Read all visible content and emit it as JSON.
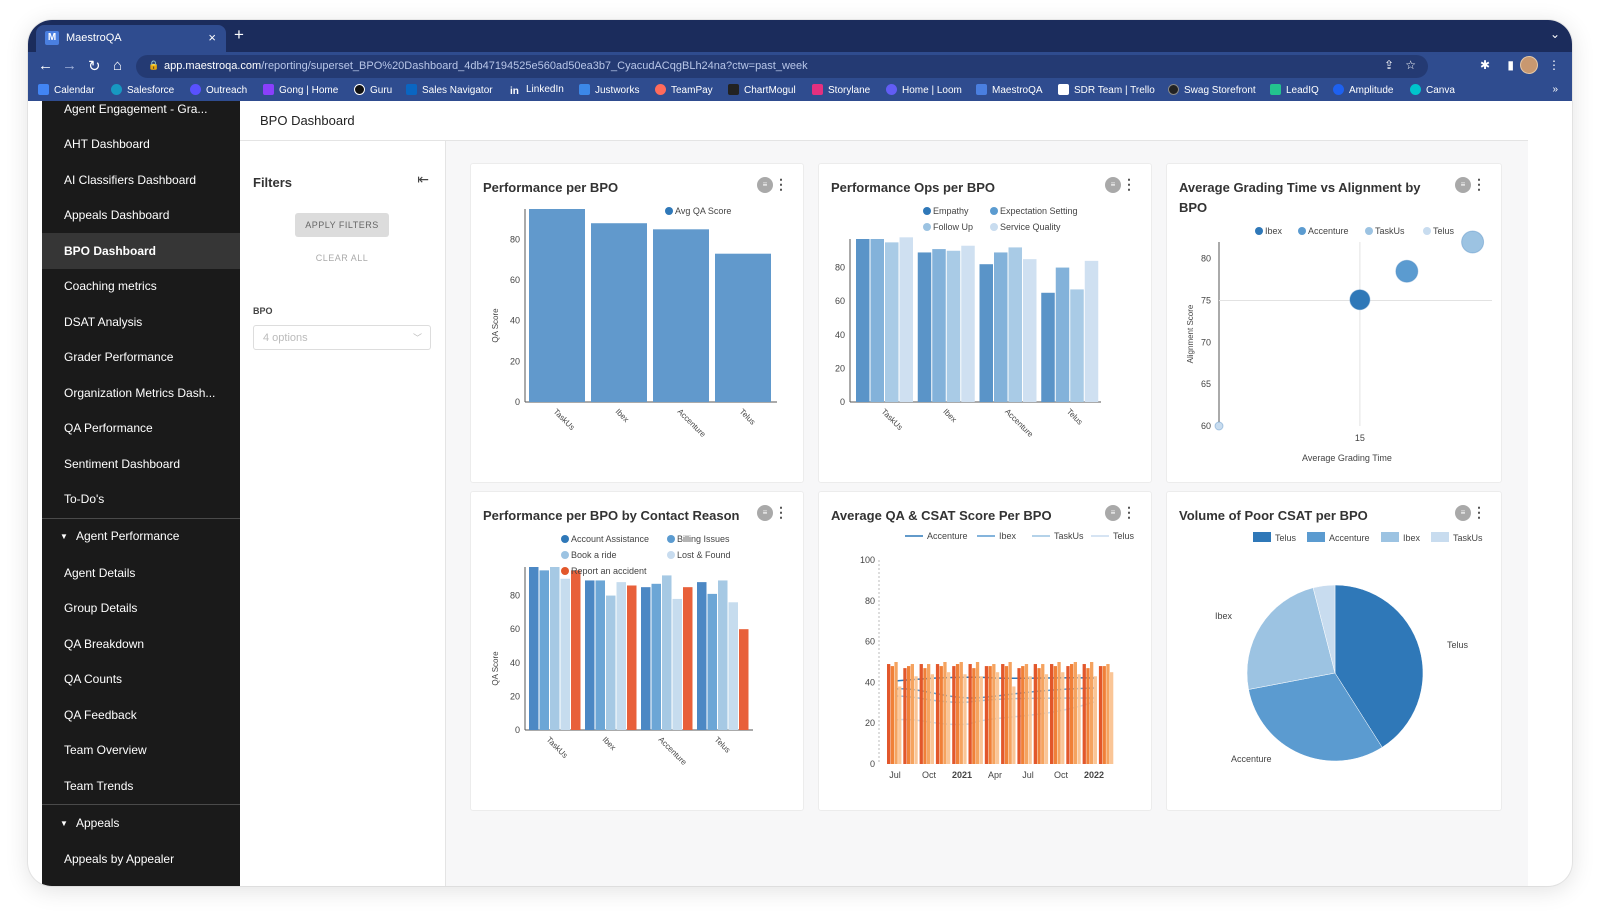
{
  "browser": {
    "tab_title": "MaestroQA",
    "tab_close": "×",
    "new_tab": "+",
    "url_host": "app.maestroqa.com",
    "url_path": "/reporting/superset_BPO%20Dashboard_4db47194525e560ad50ea3b7_CyacudACqgBLh24na?ctw=past_week",
    "bookmarks": [
      "Calendar",
      "Salesforce",
      "Outreach",
      "Gong | Home",
      "Guru",
      "Sales Navigator",
      "LinkedIn",
      "Justworks",
      "TeamPay",
      "ChartMogul",
      "Storylane",
      "Home | Loom",
      "MaestroQA",
      "SDR Team | Trello",
      "Swag Storefront",
      "LeadIQ",
      "Amplitude",
      "Canva"
    ],
    "bookmarks_more": "»"
  },
  "sidebar": {
    "items": [
      "Agent Engagement - Gra...",
      "AHT Dashboard",
      "AI Classifiers Dashboard",
      "Appeals Dashboard",
      "BPO Dashboard",
      "Coaching metrics",
      "DSAT Analysis",
      "Grader Performance",
      "Organization Metrics Dash...",
      "QA Performance",
      "Sentiment Dashboard",
      "To-Do's"
    ],
    "active_index": 4,
    "section_agent": "Agent Performance",
    "agent_items": [
      "Agent Details",
      "Group Details",
      "QA Breakdown",
      "QA Counts",
      "QA Feedback",
      "Team Overview",
      "Team Trends"
    ],
    "section_appeals": "Appeals",
    "appeals_items": [
      "Appeals by Appealer"
    ]
  },
  "header": {
    "title": "BPO Dashboard"
  },
  "filters": {
    "title": "Filters",
    "apply": "APPLY FILTERS",
    "clear": "CLEAR ALL",
    "bpo_label": "BPO",
    "bpo_placeholder": "4 options"
  },
  "colors": {
    "blue1": "#2f78b8",
    "blue2": "#5b9bd0",
    "blue3": "#9cc3e2",
    "blue4": "#c8dcef",
    "bar": "#6199cc",
    "orange1": "#e2572b",
    "orange2": "#f28c3c",
    "orange3": "#f7b179",
    "orange4": "#fad2ae"
  },
  "charts": [
    {
      "title": "Performance per BPO",
      "chart_data": {
        "type": "bar",
        "categories": [
          "TaskUs",
          "Ibex",
          "Accenture",
          "Telus"
        ],
        "series": [
          {
            "name": "Avg QA Score",
            "values": [
              95,
              88,
              85,
              73
            ]
          }
        ],
        "ylabel": "QA Score",
        "ylim": [
          0,
          95
        ],
        "yticks": [
          0,
          20,
          40,
          60,
          80
        ]
      }
    },
    {
      "title": "Performance Ops per BPO",
      "chart_data": {
        "type": "bar",
        "categories": [
          "TaskUs",
          "Ibex",
          "Accenture",
          "Telus"
        ],
        "series": [
          {
            "name": "Empathy",
            "values": [
              97,
              89,
              82,
              65
            ]
          },
          {
            "name": "Expectation Setting",
            "values": [
              97,
              91,
              89,
              80
            ]
          },
          {
            "name": "Follow Up",
            "values": [
              95,
              90,
              92,
              67
            ]
          },
          {
            "name": "Service Quality",
            "values": [
              98,
              93,
              85,
              84
            ]
          }
        ],
        "ylim": [
          0,
          97
        ],
        "yticks": [
          0,
          20,
          40,
          60,
          80
        ]
      }
    },
    {
      "title": "Average Grading Time vs Alignment by BPO",
      "chart_data": {
        "type": "scatter",
        "xlabel": "Average Grading Time",
        "ylabel": "Alignment Score",
        "xticks": [
          15
        ],
        "yticks": [
          60,
          65,
          70,
          75,
          80
        ],
        "ylim": [
          60,
          82
        ],
        "series": [
          {
            "name": "Ibex",
            "x": 15,
            "y": 75.1
          },
          {
            "name": "Accenture",
            "x": 20,
            "y": 78.5
          },
          {
            "name": "TaskUs",
            "x": 27,
            "y": 82
          },
          {
            "name": "Telus",
            "x": 0,
            "y": 60
          }
        ]
      }
    },
    {
      "title": "Performance per BPO by Contact Reason",
      "chart_data": {
        "type": "bar",
        "categories": [
          "TaskUs",
          "Ibex",
          "Accenture",
          "Telus"
        ],
        "series": [
          {
            "name": "Account Assistance",
            "values": [
              97,
              89,
              85,
              88
            ]
          },
          {
            "name": "Billing Issues",
            "values": [
              95,
              89,
              87,
              81
            ]
          },
          {
            "name": "Book a ride",
            "values": [
              97,
              80,
              92,
              89
            ]
          },
          {
            "name": "Lost & Found",
            "values": [
              90,
              88,
              78,
              76
            ]
          },
          {
            "name": "Report an accident",
            "values": [
              95,
              86,
              85,
              60
            ]
          }
        ],
        "ylabel": "QA Score",
        "ylim": [
          0,
          97
        ],
        "yticks": [
          0,
          20,
          40,
          60,
          80
        ]
      }
    },
    {
      "title": "Average QA & CSAT Score Per BPO",
      "chart_data": {
        "type": "line",
        "legend": [
          "Accenture",
          "Ibex",
          "TaskUs",
          "Telus"
        ],
        "xticks": [
          "Jul",
          "Oct",
          "2021",
          "Apr",
          "Jul",
          "Oct",
          "2022"
        ],
        "ylim": [
          0,
          100
        ],
        "yticks": [
          0,
          20,
          40,
          60,
          80,
          100
        ]
      }
    },
    {
      "title": "Volume of Poor CSAT per BPO",
      "chart_data": {
        "type": "pie",
        "labels": [
          "Telus",
          "Accenture",
          "Ibex",
          "TaskUs"
        ],
        "values": [
          41,
          31,
          24,
          4
        ]
      }
    }
  ]
}
